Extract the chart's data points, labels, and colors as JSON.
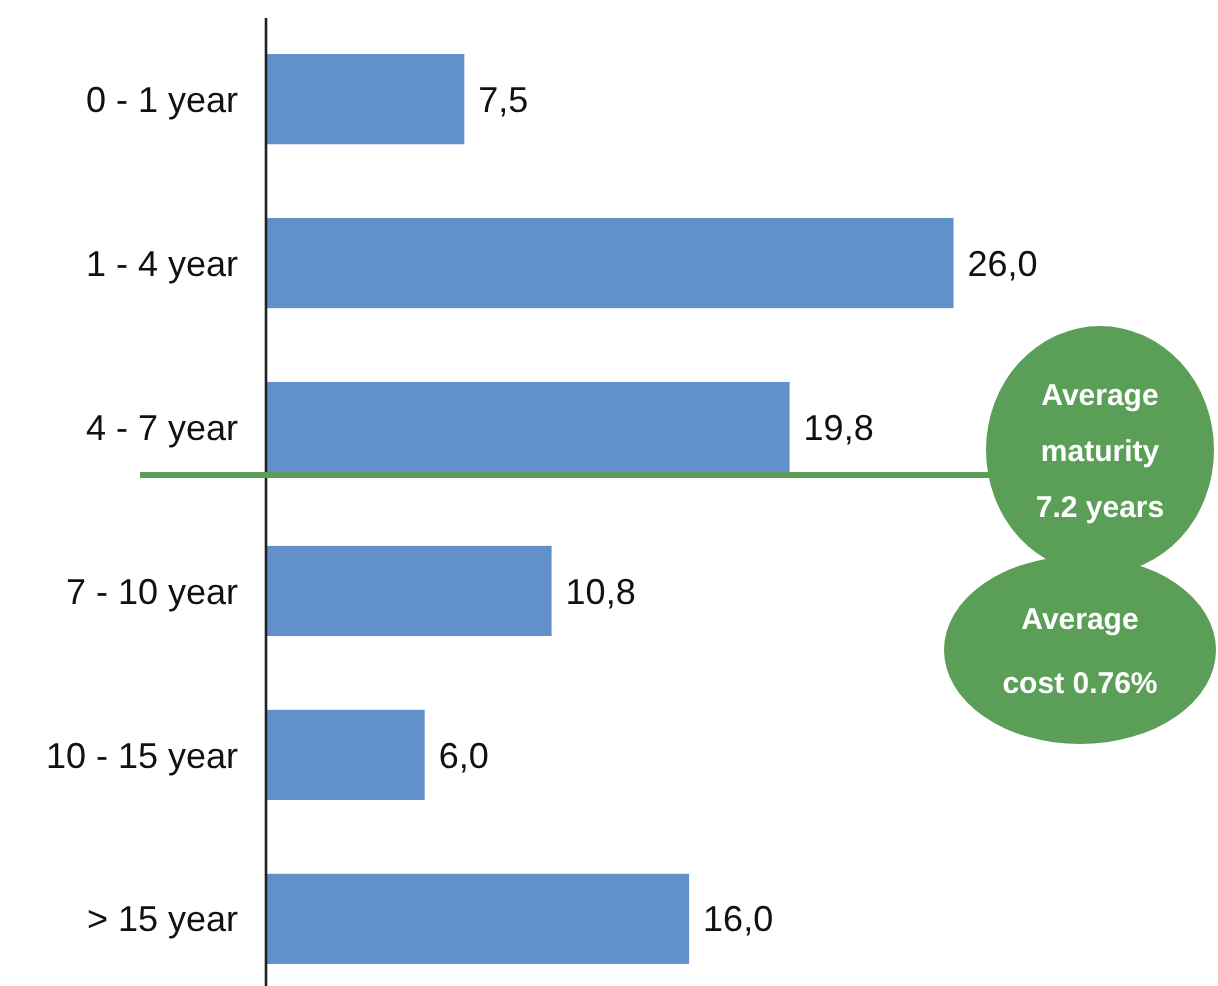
{
  "chart_data": {
    "type": "bar",
    "orientation": "horizontal",
    "categories": [
      "0 - 1 year",
      "1 - 4 year",
      "4 - 7 year",
      "7 - 10 year",
      "10 - 15 year",
      "> 15 year"
    ],
    "values": [
      7.5,
      26.0,
      19.8,
      10.8,
      6.0,
      16.0
    ],
    "value_labels": [
      "7,5",
      "26,0",
      "19,8",
      "10,8",
      "6,0",
      "16,0"
    ],
    "color": "#6190cb",
    "xlim": [
      0,
      36
    ],
    "tick_labels": "y",
    "ref_lines": [
      {
        "axis": "y",
        "value": "4 - 7 year",
        "color": "#5b9e57"
      }
    ],
    "annotations": [
      "Average maturity 7.2 years",
      "Average cost 0.76%"
    ]
  }
}
